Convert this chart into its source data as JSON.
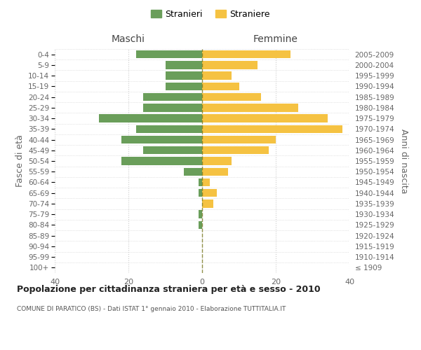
{
  "age_groups": [
    "100+",
    "95-99",
    "90-94",
    "85-89",
    "80-84",
    "75-79",
    "70-74",
    "65-69",
    "60-64",
    "55-59",
    "50-54",
    "45-49",
    "40-44",
    "35-39",
    "30-34",
    "25-29",
    "20-24",
    "15-19",
    "10-14",
    "5-9",
    "0-4"
  ],
  "birth_years": [
    "≤ 1909",
    "1910-1914",
    "1915-1919",
    "1920-1924",
    "1925-1929",
    "1930-1934",
    "1935-1939",
    "1940-1944",
    "1945-1949",
    "1950-1954",
    "1955-1959",
    "1960-1964",
    "1965-1969",
    "1970-1974",
    "1975-1979",
    "1980-1984",
    "1985-1989",
    "1990-1994",
    "1995-1999",
    "2000-2004",
    "2005-2009"
  ],
  "maschi": [
    0,
    0,
    0,
    0,
    1,
    1,
    0,
    1,
    1,
    5,
    22,
    16,
    22,
    18,
    28,
    16,
    16,
    10,
    10,
    10,
    18
  ],
  "femmine": [
    0,
    0,
    0,
    0,
    0,
    0,
    3,
    4,
    2,
    7,
    8,
    18,
    20,
    38,
    34,
    26,
    16,
    10,
    8,
    15,
    24
  ],
  "maschi_color": "#6a9e5a",
  "femmine_color": "#f5c242",
  "background_color": "#ffffff",
  "grid_color": "#cccccc",
  "text_color": "#666666",
  "center_line_color": "#808040",
  "title": "Popolazione per cittadinanza straniera per età e sesso - 2010",
  "subtitle": "COMUNE DI PARATICO (BS) - Dati ISTAT 1° gennaio 2010 - Elaborazione TUTTITALIA.IT",
  "header_left": "Maschi",
  "header_right": "Femmine",
  "ylabel_left": "Fasce di età",
  "ylabel_right": "Anni di nascita",
  "legend_maschi": "Stranieri",
  "legend_femmine": "Straniere",
  "xlim": 40,
  "bar_height": 0.75
}
